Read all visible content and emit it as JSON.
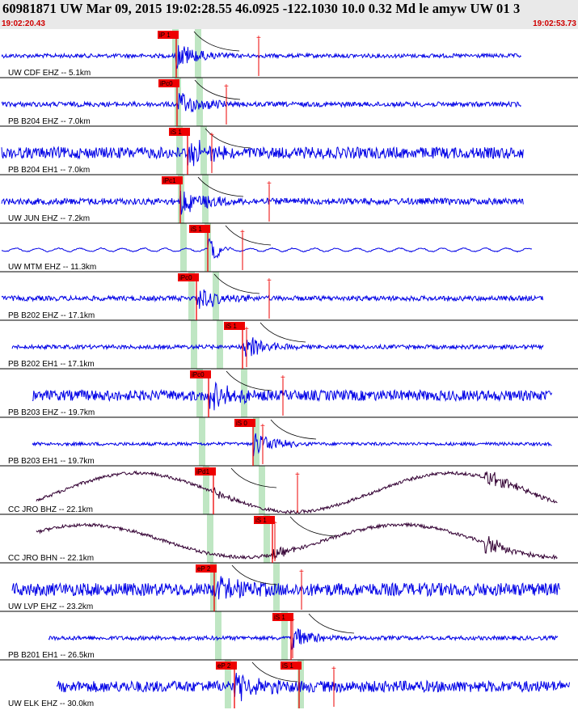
{
  "header": {
    "title": "60981871 UW Mar 09, 2015 19:02:28.55   46.0925 -122.1030 10.0 0.32 Md le amyw UW 01   3",
    "start_time": "19:02:20.43",
    "end_time": "19:02:53.73"
  },
  "colors": {
    "trace_blue": "#0000e6",
    "trace_dark": "#330033",
    "pick_red": "#ee0000",
    "band_green": "#bfe6c3",
    "header_bg": "#e9e9e9"
  },
  "traces": [
    {
      "label": "UW CDF EHZ -- 5.1km",
      "pick": "iP 1",
      "color": "blue"
    },
    {
      "label": "PB B204 EHZ -- 7.0km",
      "pick": "iPc0",
      "color": "blue"
    },
    {
      "label": "PB B204 EH1 -- 7.0km",
      "pick": "iS 1",
      "color": "blue"
    },
    {
      "label": "UW JUN EHZ -- 7.2km",
      "pick": "iPc1",
      "color": "blue"
    },
    {
      "label": "UW MTM EHZ -- 11.3km",
      "pick": "iS 1",
      "color": "blue"
    },
    {
      "label": "PB B202 EHZ -- 17.1km",
      "pick": "iPc0",
      "color": "blue"
    },
    {
      "label": "PB B202 EH1 -- 17.1km",
      "pick": "iS 1",
      "color": "blue"
    },
    {
      "label": "PB B203 EHZ -- 19.7km",
      "pick": "iPc0",
      "color": "blue"
    },
    {
      "label": "PB B203 EH1 -- 19.7km",
      "pick": "iS 0",
      "color": "blue"
    },
    {
      "label": "CC JRO BHZ -- 22.1km",
      "pick": "iPd1",
      "color": "dark"
    },
    {
      "label": "CC JRO BHN -- 22.1km",
      "pick": "iS 1",
      "color": "dark"
    },
    {
      "label": "UW LVP EHZ -- 23.2km",
      "pick": "eP 2",
      "color": "blue"
    },
    {
      "label": "PB B201 EH1 -- 26.5km",
      "pick": "iS 1",
      "color": "blue"
    },
    {
      "label": "UW ELK EHZ -- 30.0km",
      "pick": "eP 2",
      "color": "blue"
    }
  ],
  "extra_picks": [
    {
      "trace": 13,
      "pick": "iS 1"
    }
  ]
}
